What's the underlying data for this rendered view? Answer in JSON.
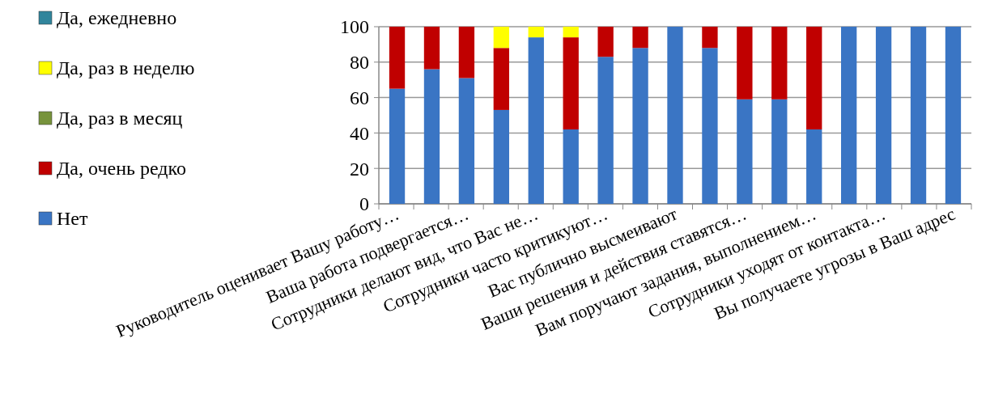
{
  "chart_data": {
    "type": "bar",
    "stacked": true,
    "categories": [
      "Руководитель оценивает Вашу работу…",
      null,
      "Ваша работа подвергается…",
      null,
      "Сотрудники делают вид, что Вас не…",
      null,
      "Сотрудники часто критикуют…",
      null,
      "Вас публично высмеивают",
      null,
      "Ваши решения и действия ставятся…",
      null,
      "Вам поручают задания, выполнением…",
      null,
      "Сотрудники уходят от контакта…",
      null,
      "Вы получаете угрозы в Ваш адрес"
    ],
    "series": [
      {
        "name": "Нет",
        "color": "#3a75c4",
        "values": [
          65,
          76,
          71,
          53,
          94,
          42,
          83,
          88,
          100,
          88,
          59,
          59,
          42,
          100,
          100,
          100,
          100
        ]
      },
      {
        "name": "Да, очень редко",
        "color": "#c00000",
        "values": [
          35,
          24,
          29,
          35,
          0,
          52,
          17,
          12,
          0,
          12,
          41,
          41,
          58,
          0,
          0,
          0,
          0
        ]
      },
      {
        "name": "Да, раз в месяц",
        "color": "#77933c",
        "values": [
          0,
          0,
          0,
          0,
          0,
          0,
          0,
          0,
          0,
          0,
          0,
          0,
          0,
          0,
          0,
          0,
          0
        ]
      },
      {
        "name": "Да, раз в неделю",
        "color": "#ffff00",
        "values": [
          0,
          0,
          0,
          12,
          6,
          6,
          0,
          0,
          0,
          0,
          0,
          0,
          0,
          0,
          0,
          0,
          0
        ]
      },
      {
        "name": "Да, ежедневно",
        "color": "#31859c",
        "values": [
          0,
          0,
          0,
          0,
          0,
          0,
          0,
          0,
          0,
          0,
          0,
          0,
          0,
          0,
          0,
          0,
          0
        ]
      }
    ],
    "ylim": [
      0,
      100
    ],
    "yticks": [
      0,
      20,
      40,
      60,
      80,
      100
    ],
    "grid": "y",
    "legend": "left"
  }
}
